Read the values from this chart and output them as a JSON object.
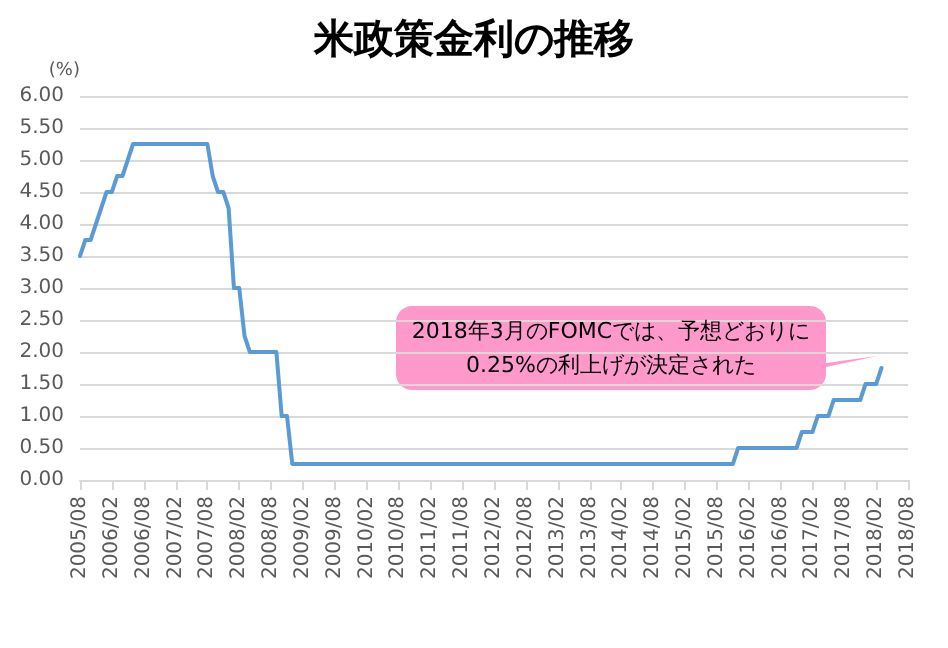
{
  "chart_data": {
    "type": "line",
    "title": "米政策金利の推移",
    "ylabel": "(%)",
    "categories": [
      "2005/08",
      null,
      null,
      null,
      null,
      null,
      "2006/02",
      null,
      null,
      null,
      null,
      null,
      "2006/08",
      null,
      null,
      null,
      null,
      null,
      "2007/02",
      null,
      null,
      null,
      null,
      null,
      "2007/08",
      null,
      null,
      null,
      null,
      null,
      "2008/02",
      null,
      null,
      null,
      null,
      null,
      "2008/08",
      null,
      null,
      null,
      null,
      null,
      "2009/02",
      null,
      null,
      null,
      null,
      null,
      "2009/08",
      null,
      null,
      null,
      null,
      null,
      "2010/02",
      null,
      null,
      null,
      null,
      null,
      "2010/08",
      null,
      null,
      null,
      null,
      null,
      "2011/02",
      null,
      null,
      null,
      null,
      null,
      "2011/08",
      null,
      null,
      null,
      null,
      null,
      "2012/02",
      null,
      null,
      null,
      null,
      null,
      "2012/08",
      null,
      null,
      null,
      null,
      null,
      "2013/02",
      null,
      null,
      null,
      null,
      null,
      "2013/08",
      null,
      null,
      null,
      null,
      null,
      "2014/02",
      null,
      null,
      null,
      null,
      null,
      "2014/08",
      null,
      null,
      null,
      null,
      null,
      "2015/02",
      null,
      null,
      null,
      null,
      null,
      "2015/08",
      null,
      null,
      null,
      null,
      null,
      "2016/02",
      null,
      null,
      null,
      null,
      null,
      "2016/08",
      null,
      null,
      null,
      null,
      null,
      "2017/02",
      null,
      null,
      null,
      null,
      null,
      "2017/08",
      null,
      null,
      null,
      null,
      null,
      "2018/02",
      null,
      null,
      null,
      null,
      null,
      "2018/08"
    ],
    "series": [
      {
        "color": "#5b9bd5",
        "values": [
          3.5,
          3.75,
          3.75,
          4.0,
          4.25,
          4.5,
          4.5,
          4.75,
          4.75,
          5.0,
          5.25,
          5.25,
          5.25,
          5.25,
          5.25,
          5.25,
          5.25,
          5.25,
          5.25,
          5.25,
          5.25,
          5.25,
          5.25,
          5.25,
          5.25,
          4.75,
          4.5,
          4.5,
          4.25,
          3.0,
          3.0,
          2.25,
          2.0,
          2.0,
          2.0,
          2.0,
          2.0,
          2.0,
          1.0,
          1.0,
          0.25,
          0.25,
          0.25,
          0.25,
          0.25,
          0.25,
          0.25,
          0.25,
          0.25,
          0.25,
          0.25,
          0.25,
          0.25,
          0.25,
          0.25,
          0.25,
          0.25,
          0.25,
          0.25,
          0.25,
          0.25,
          0.25,
          0.25,
          0.25,
          0.25,
          0.25,
          0.25,
          0.25,
          0.25,
          0.25,
          0.25,
          0.25,
          0.25,
          0.25,
          0.25,
          0.25,
          0.25,
          0.25,
          0.25,
          0.25,
          0.25,
          0.25,
          0.25,
          0.25,
          0.25,
          0.25,
          0.25,
          0.25,
          0.25,
          0.25,
          0.25,
          0.25,
          0.25,
          0.25,
          0.25,
          0.25,
          0.25,
          0.25,
          0.25,
          0.25,
          0.25,
          0.25,
          0.25,
          0.25,
          0.25,
          0.25,
          0.25,
          0.25,
          0.25,
          0.25,
          0.25,
          0.25,
          0.25,
          0.25,
          0.25,
          0.25,
          0.25,
          0.25,
          0.25,
          0.25,
          0.25,
          0.25,
          0.25,
          0.25,
          0.5,
          0.5,
          0.5,
          0.5,
          0.5,
          0.5,
          0.5,
          0.5,
          0.5,
          0.5,
          0.5,
          0.5,
          0.75,
          0.75,
          0.75,
          1.0,
          1.0,
          1.0,
          1.25,
          1.25,
          1.25,
          1.25,
          1.25,
          1.25,
          1.5,
          1.5,
          1.5,
          1.75,
          null,
          null,
          null,
          null,
          null
        ]
      }
    ],
    "ylim": [
      0,
      6
    ],
    "yticks": [
      {
        "value": 0,
        "label": "0.00"
      },
      {
        "value": 0.5,
        "label": "0.50"
      },
      {
        "value": 1,
        "label": "1.00"
      },
      {
        "value": 1.5,
        "label": "1.50"
      },
      {
        "value": 2,
        "label": "2.00"
      },
      {
        "value": 2.5,
        "label": "2.50"
      },
      {
        "value": 3,
        "label": "3.00"
      },
      {
        "value": 3.5,
        "label": "3.50"
      },
      {
        "value": 4,
        "label": "4.00"
      },
      {
        "value": 4.5,
        "label": "4.50"
      },
      {
        "value": 5,
        "label": "5.00"
      },
      {
        "value": 5.5,
        "label": "5.50"
      },
      {
        "value": 6,
        "label": "6.00"
      }
    ],
    "grid": "y",
    "marker": "none",
    "line_style": "solid",
    "annotations": [
      "2018年3月のFOMCでは、予想どおりに\n0.25%の利上げが決定された"
    ]
  }
}
